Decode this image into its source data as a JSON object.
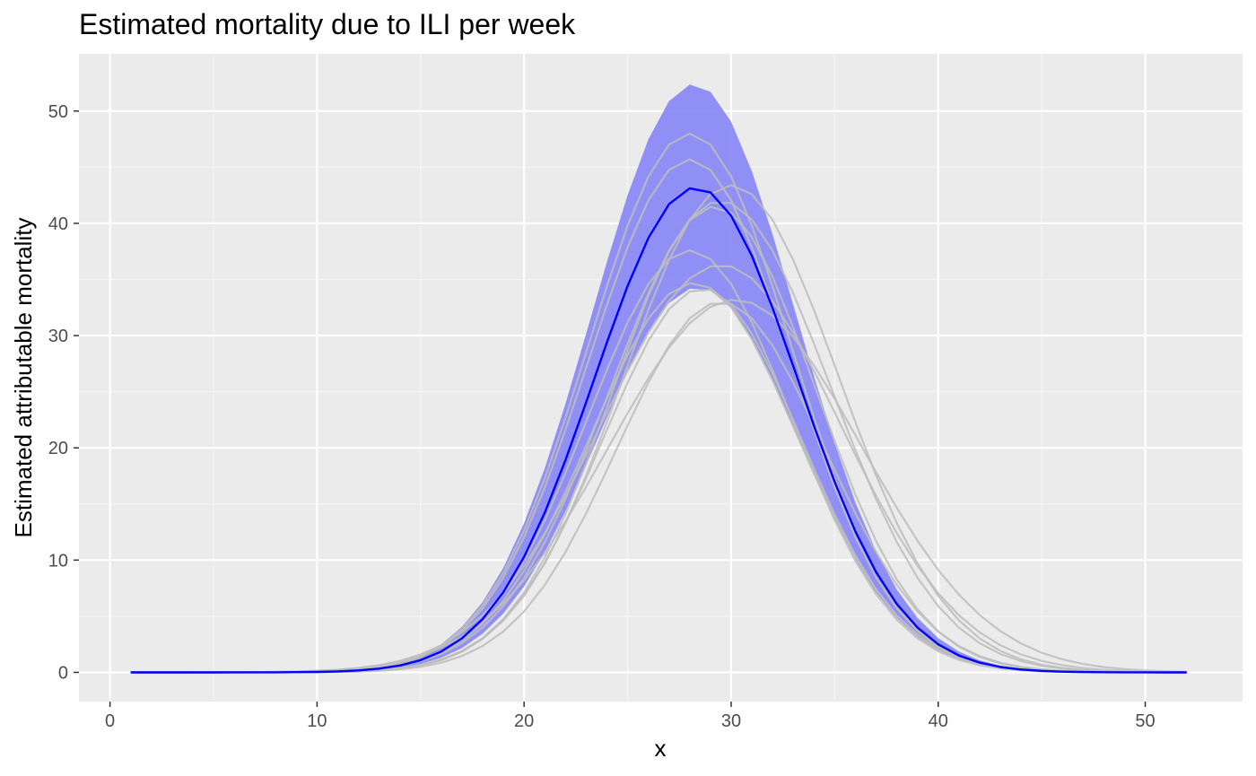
{
  "chart_data": {
    "type": "line",
    "title": "Estimated mortality due to ILI per week",
    "xlabel": "x",
    "ylabel": "Estimated attributable mortality",
    "xlim": [
      -1.5,
      54.7
    ],
    "ylim": [
      -2.6,
      55.1
    ],
    "x_ticks": [
      0,
      10,
      20,
      30,
      40,
      50
    ],
    "y_ticks": [
      0,
      10,
      20,
      30,
      40,
      50
    ],
    "x_tick_labels": [
      "0",
      "10",
      "20",
      "30",
      "40",
      "50"
    ],
    "y_tick_labels": [
      "0",
      "10",
      "20",
      "30",
      "40",
      "50"
    ],
    "grid": true,
    "legend": "none",
    "colors": {
      "panel_background": "#ebebeb",
      "grid_major": "#ffffff",
      "grid_minor": "#f5f5f5",
      "mean_line": "#0000ff",
      "ribbon": "#8a8af5",
      "sample_lines": "#bdbdbd",
      "tick_mark": "#333333"
    },
    "curve_form": "gaussian",
    "x_range": [
      1,
      52
    ],
    "mean_curve": {
      "peak": 43.2,
      "center": 28.3,
      "sd": 4.9
    },
    "ribbon": {
      "upper": {
        "peak": 52.4,
        "center": 28.2,
        "sd": 4.95
      },
      "lower": {
        "peak": 34.3,
        "center": 28.4,
        "sd": 4.85
      }
    },
    "sample_curves": [
      {
        "peak": 48.0,
        "center": 28.0,
        "sd": 4.9
      },
      {
        "peak": 45.7,
        "center": 28.0,
        "sd": 4.9
      },
      {
        "peak": 43.4,
        "center": 30.0,
        "sd": 5.2
      },
      {
        "peak": 42.0,
        "center": 29.5,
        "sd": 5.3
      },
      {
        "peak": 41.5,
        "center": 29.2,
        "sd": 4.9
      },
      {
        "peak": 37.6,
        "center": 28.0,
        "sd": 4.9
      },
      {
        "peak": 36.3,
        "center": 29.5,
        "sd": 5.8
      },
      {
        "peak": 34.7,
        "center": 28.2,
        "sd": 5.0
      },
      {
        "peak": 33.2,
        "center": 30.2,
        "sd": 6.1
      },
      {
        "peak": 33.0,
        "center": 29.5,
        "sd": 5.0
      },
      {
        "peak": 34.2,
        "center": 28.6,
        "sd": 4.8
      }
    ]
  }
}
